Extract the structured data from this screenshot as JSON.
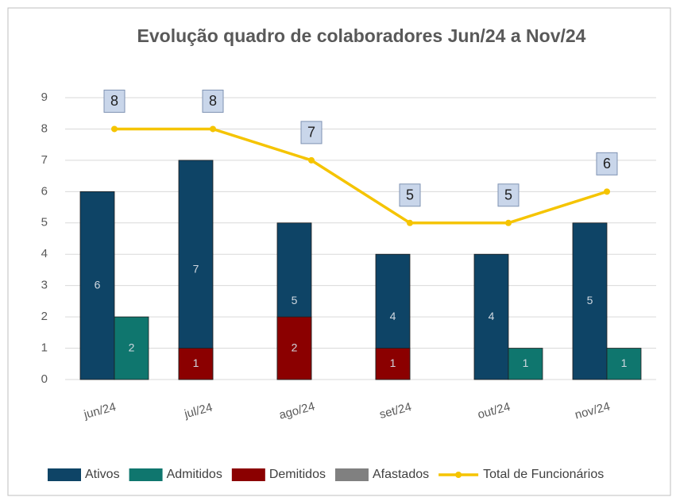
{
  "chart_data": {
    "type": "bar",
    "title": "Evolução quadro de colaboradores Jun/24 a Nov/24",
    "categories": [
      "jun/24",
      "jul/24",
      "ago/24",
      "set/24",
      "out/24",
      "nov/24"
    ],
    "series": [
      {
        "name": "Ativos",
        "color": "#0e4466",
        "values": [
          6,
          7,
          5,
          4,
          4,
          5
        ]
      },
      {
        "name": "Admitidos",
        "color": "#0f766e",
        "values": [
          2,
          0,
          0,
          0,
          1,
          1
        ]
      },
      {
        "name": "Demitidos",
        "color": "#8b0000",
        "values": [
          0,
          1,
          2,
          1,
          0,
          0
        ]
      },
      {
        "name": "Afastados",
        "color": "#808080",
        "values": [
          0,
          0,
          0,
          0,
          0,
          0
        ]
      },
      {
        "name": "Total de Funcionários",
        "type": "line",
        "color": "#f5c400",
        "values": [
          8,
          8,
          7,
          5,
          5,
          6
        ]
      }
    ],
    "ylim": [
      0,
      9
    ],
    "yticks": [
      0,
      1,
      2,
      3,
      4,
      5,
      6,
      7,
      8,
      9
    ],
    "grid": true,
    "legend": "bottom"
  }
}
